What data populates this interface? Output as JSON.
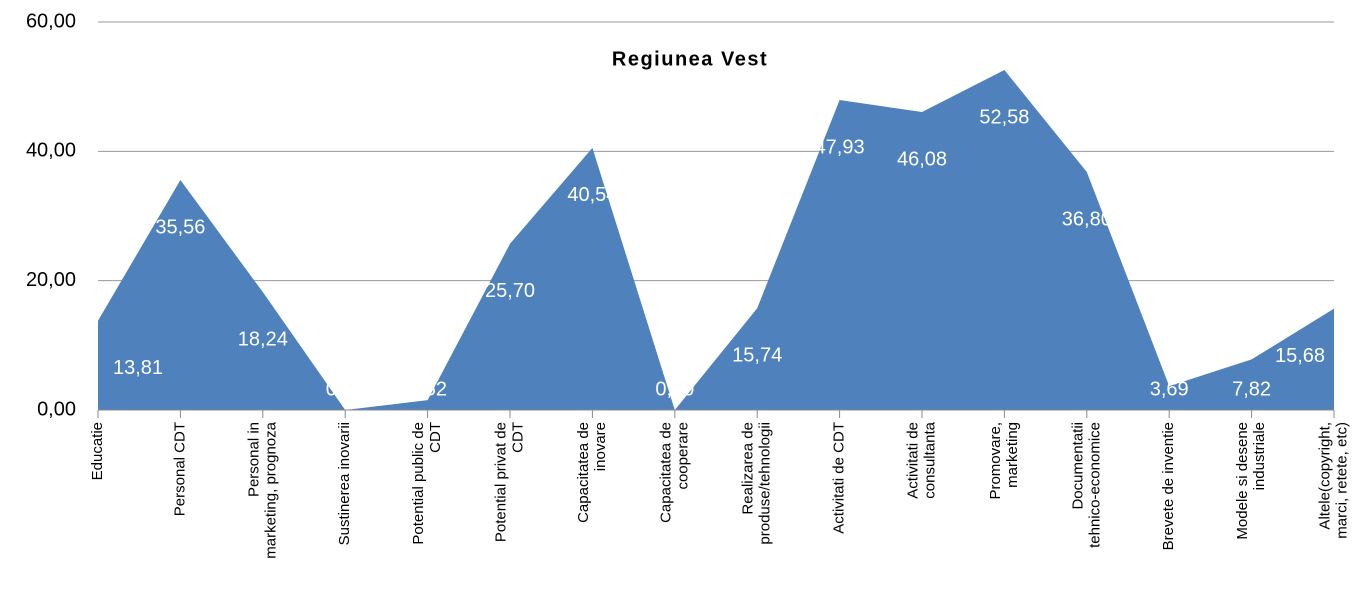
{
  "chart_data": {
    "type": "area",
    "title": "Regiunea Vest",
    "categories": [
      "Educatie",
      "Personal CDT",
      "Personal in marketing, prognoza",
      "Sustinerea inovarii",
      "Potential public de CDT",
      "Potential privat de CDT",
      "Capacitatea de inovare",
      "Capacitatea de cooperare",
      "Realizarea de produse/tehnologii",
      "Activitati de CDT",
      "Activitati de consultanta",
      "Promovare, marketing",
      "Documentatii tehnico-economice",
      "Brevete de inventie",
      "Modele si desene industriale",
      "Altele(copyright, marci, retete, etc)"
    ],
    "values": [
      13.81,
      35.56,
      18.24,
      0.0,
      1.52,
      25.7,
      40.54,
      0.0,
      15.74,
      47.93,
      46.08,
      52.58,
      36.8,
      3.69,
      7.82,
      15.68
    ],
    "value_labels": [
      "13,81",
      "35,56",
      "18,24",
      "0,00",
      "1,52",
      "25,70",
      "40,54",
      "0,00",
      "15,74",
      "47,93",
      "46,08",
      "52,58",
      "36,80",
      "3,69",
      "7,82",
      "15,68"
    ],
    "color": "#4f81bd",
    "ylim": [
      0,
      60
    ],
    "yticks": [
      {
        "value": 0,
        "label": "0,00"
      },
      {
        "value": 20,
        "label": "20,00"
      },
      {
        "value": 40,
        "label": "40,00"
      },
      {
        "value": 60,
        "label": "60,00"
      }
    ],
    "grid": true
  }
}
